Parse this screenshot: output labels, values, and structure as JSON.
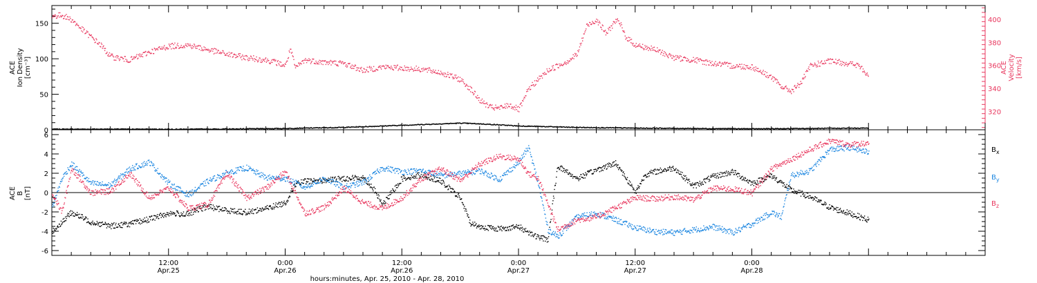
{
  "colors": {
    "black": "#000000",
    "pink": "#e8365d",
    "blue": "#1a85e0"
  },
  "chart_data": [
    {
      "type": "scatter",
      "panel": "top",
      "ylabel_left_lines": [
        "ACE",
        "Ion Density",
        "[cm⁻³]"
      ],
      "ylabel_right_lines": [
        "ACE",
        "Velocity",
        "[km/s]"
      ],
      "left_axis": {
        "ylim": [
          0,
          175
        ],
        "ticks": [
          0,
          50,
          100,
          150
        ]
      },
      "right_axis": {
        "ylim": [
          304,
          412
        ],
        "ticks": [
          320,
          340,
          360,
          380,
          400
        ]
      },
      "series": [
        {
          "axis": "left",
          "color": "black",
          "points": [
            [
              0,
              1.5
            ],
            [
              6,
              1.6
            ],
            [
              12,
              1.4
            ],
            [
              18,
              1.7
            ],
            [
              24,
              2.5
            ],
            [
              30,
              4
            ],
            [
              36,
              7
            ],
            [
              40,
              9
            ],
            [
              42,
              10
            ],
            [
              44,
              9
            ],
            [
              48,
              6
            ],
            [
              54,
              4
            ],
            [
              60,
              3
            ],
            [
              66,
              2.5
            ],
            [
              72,
              2
            ],
            [
              78,
              2.5
            ],
            [
              84,
              3
            ]
          ]
        },
        {
          "axis": "right",
          "color": "pink",
          "points": [
            [
              0,
              403
            ],
            [
              1,
              404
            ],
            [
              2,
              400
            ],
            [
              3,
              392
            ],
            [
              4,
              385
            ],
            [
              5,
              378
            ],
            [
              6,
              368
            ],
            [
              8,
              365
            ],
            [
              10,
              372
            ],
            [
              12,
              377
            ],
            [
              14,
              378
            ],
            [
              16,
              374
            ],
            [
              18,
              370
            ],
            [
              20,
              367
            ],
            [
              22,
              365
            ],
            [
              23,
              363
            ],
            [
              24,
              360
            ],
            [
              24.5,
              375
            ],
            [
              25,
              358
            ],
            [
              26,
              365
            ],
            [
              28,
              363
            ],
            [
              30,
              362
            ],
            [
              32,
              356
            ],
            [
              34,
              359
            ],
            [
              36,
              358
            ],
            [
              38,
              357
            ],
            [
              40,
              354
            ],
            [
              42,
              348
            ],
            [
              43,
              340
            ],
            [
              44,
              330
            ],
            [
              45,
              324
            ],
            [
              46,
              323
            ],
            [
              47,
              326
            ],
            [
              48,
              322
            ],
            [
              48.5,
              330
            ],
            [
              49,
              340
            ],
            [
              50,
              348
            ],
            [
              51,
              356
            ],
            [
              52,
              360
            ],
            [
              53,
              364
            ],
            [
              54,
              370
            ],
            [
              55,
              395
            ],
            [
              56,
              400
            ],
            [
              57,
              388
            ],
            [
              58,
              400
            ],
            [
              58.5,
              395
            ],
            [
              59,
              385
            ],
            [
              60,
              378
            ],
            [
              62,
              374
            ],
            [
              64,
              367
            ],
            [
              66,
              365
            ],
            [
              68,
              362
            ],
            [
              70,
              360
            ],
            [
              72,
              359
            ],
            [
              74,
              350
            ],
            [
              75,
              342
            ],
            [
              76,
              338
            ],
            [
              77,
              345
            ],
            [
              78,
              360
            ],
            [
              80,
              364
            ],
            [
              82,
              362
            ],
            [
              83,
              360
            ],
            [
              84,
              350
            ]
          ]
        }
      ]
    },
    {
      "type": "scatter",
      "panel": "bottom",
      "ylabel_lines": [
        "ACE",
        "B",
        "[nT]"
      ],
      "ylim": [
        -6.5,
        6.5
      ],
      "ticks": [
        -6,
        -4,
        -2,
        0,
        2,
        4,
        6
      ],
      "legend_placement": "right",
      "series": [
        {
          "name": "B",
          "sub": "x",
          "color": "black",
          "points": [
            [
              0,
              -4.0
            ],
            [
              2,
              -2.0
            ],
            [
              4,
              -3.0
            ],
            [
              6,
              -3.4
            ],
            [
              8,
              -3.2
            ],
            [
              10,
              -2.7
            ],
            [
              12,
              -2.1
            ],
            [
              14,
              -2.2
            ],
            [
              15,
              -1.7
            ],
            [
              16,
              -1.4
            ],
            [
              18,
              -1.8
            ],
            [
              20,
              -2.0
            ],
            [
              22,
              -1.6
            ],
            [
              24,
              -1.0
            ],
            [
              25,
              0.9
            ],
            [
              26,
              1.2
            ],
            [
              28,
              1.3
            ],
            [
              30,
              1.5
            ],
            [
              32,
              1.6
            ],
            [
              33,
              0.5
            ],
            [
              34,
              -1.2
            ],
            [
              36,
              1.5
            ],
            [
              38,
              1.9
            ],
            [
              40,
              1.2
            ],
            [
              42,
              -0.5
            ],
            [
              43,
              -3.1
            ],
            [
              44,
              -3.5
            ],
            [
              46,
              -3.7
            ],
            [
              48,
              -3.5
            ],
            [
              50,
              -4.6
            ],
            [
              51,
              -4.8
            ],
            [
              52,
              2.8
            ],
            [
              54,
              1.5
            ],
            [
              56,
              2.4
            ],
            [
              58,
              3.1
            ],
            [
              60,
              0.1
            ],
            [
              61,
              1.9
            ],
            [
              62,
              2.2
            ],
            [
              64,
              2.6
            ],
            [
              66,
              0.7
            ],
            [
              68,
              1.7
            ],
            [
              70,
              2.2
            ],
            [
              72,
              1.0
            ],
            [
              74,
              1.8
            ],
            [
              76,
              0.3
            ],
            [
              78,
              -0.4
            ],
            [
              80,
              -1.5
            ],
            [
              82,
              -2.1
            ],
            [
              84,
              -2.8
            ]
          ]
        },
        {
          "name": "B",
          "sub": "y",
          "color": "blue",
          "points": [
            [
              0,
              -1.5
            ],
            [
              1,
              1.5
            ],
            [
              2,
              3.0
            ],
            [
              4,
              1.0
            ],
            [
              6,
              0.8
            ],
            [
              8,
              2.5
            ],
            [
              10,
              3.2
            ],
            [
              12,
              1.0
            ],
            [
              14,
              -0.2
            ],
            [
              16,
              1.2
            ],
            [
              18,
              2.1
            ],
            [
              20,
              2.6
            ],
            [
              22,
              1.6
            ],
            [
              24,
              1.5
            ],
            [
              26,
              0.6
            ],
            [
              28,
              1.5
            ],
            [
              30,
              0.6
            ],
            [
              32,
              1.1
            ],
            [
              34,
              2.6
            ],
            [
              36,
              2.2
            ],
            [
              38,
              2.3
            ],
            [
              40,
              1.8
            ],
            [
              42,
              2.0
            ],
            [
              44,
              2.3
            ],
            [
              46,
              1.4
            ],
            [
              48,
              3.2
            ],
            [
              49,
              4.7
            ],
            [
              50,
              1.0
            ],
            [
              51,
              -3.8
            ],
            [
              52,
              -4.5
            ],
            [
              54,
              -2.5
            ],
            [
              56,
              -2.1
            ],
            [
              58,
              -2.8
            ],
            [
              60,
              -3.6
            ],
            [
              62,
              -4.0
            ],
            [
              64,
              -4.1
            ],
            [
              66,
              -3.8
            ],
            [
              68,
              -3.5
            ],
            [
              70,
              -4.1
            ],
            [
              72,
              -3.2
            ],
            [
              74,
              -2.0
            ],
            [
              75,
              -2.5
            ],
            [
              76,
              1.8
            ],
            [
              78,
              2.3
            ],
            [
              80,
              4.5
            ],
            [
              82,
              4.7
            ],
            [
              84,
              4.2
            ]
          ]
        },
        {
          "name": "B",
          "sub": "z",
          "color": "pink",
          "points": [
            [
              0,
              0.0
            ],
            [
              1,
              -2.0
            ],
            [
              2,
              2.5
            ],
            [
              4,
              0.0
            ],
            [
              6,
              0.2
            ],
            [
              8,
              2.0
            ],
            [
              10,
              -0.5
            ],
            [
              12,
              0.5
            ],
            [
              14,
              -1.6
            ],
            [
              16,
              -1.2
            ],
            [
              18,
              2.0
            ],
            [
              20,
              -0.5
            ],
            [
              22,
              0.5
            ],
            [
              24,
              2.2
            ],
            [
              26,
              -2.1
            ],
            [
              28,
              -1.5
            ],
            [
              30,
              0.5
            ],
            [
              32,
              -1.0
            ],
            [
              34,
              -1.6
            ],
            [
              36,
              -0.5
            ],
            [
              38,
              1.5
            ],
            [
              40,
              2.5
            ],
            [
              42,
              1.3
            ],
            [
              44,
              3.0
            ],
            [
              46,
              3.8
            ],
            [
              48,
              3.5
            ],
            [
              49,
              2.0
            ],
            [
              50,
              1.5
            ],
            [
              52,
              -3.8
            ],
            [
              54,
              -2.8
            ],
            [
              56,
              -2.5
            ],
            [
              58,
              -1.5
            ],
            [
              60,
              -0.5
            ],
            [
              62,
              -0.6
            ],
            [
              64,
              -0.4
            ],
            [
              66,
              -0.7
            ],
            [
              68,
              0.5
            ],
            [
              70,
              0.4
            ],
            [
              72,
              0.0
            ],
            [
              74,
              2.5
            ],
            [
              76,
              3.5
            ],
            [
              78,
              4.5
            ],
            [
              80,
              5.4
            ],
            [
              82,
              5.0
            ],
            [
              84,
              5.2
            ]
          ]
        }
      ]
    }
  ],
  "time_axis": {
    "xlim_hours": [
      0,
      96
    ],
    "hour_ticks": [
      {
        "x": 12,
        "time": "12:00",
        "date": "Apr.25"
      },
      {
        "x": 24,
        "time": "0:00",
        "date": "Apr.26"
      },
      {
        "x": 36,
        "time": "12:00",
        "date": "Apr.26"
      },
      {
        "x": 48,
        "time": "0:00",
        "date": "Apr.27"
      },
      {
        "x": 60,
        "time": "12:00",
        "date": "Apr.27"
      },
      {
        "x": 72,
        "time": "0:00",
        "date": "Apr.28"
      }
    ],
    "xlabel": "hours:minutes, Apr. 25, 2010 - Apr. 28, 2010"
  }
}
